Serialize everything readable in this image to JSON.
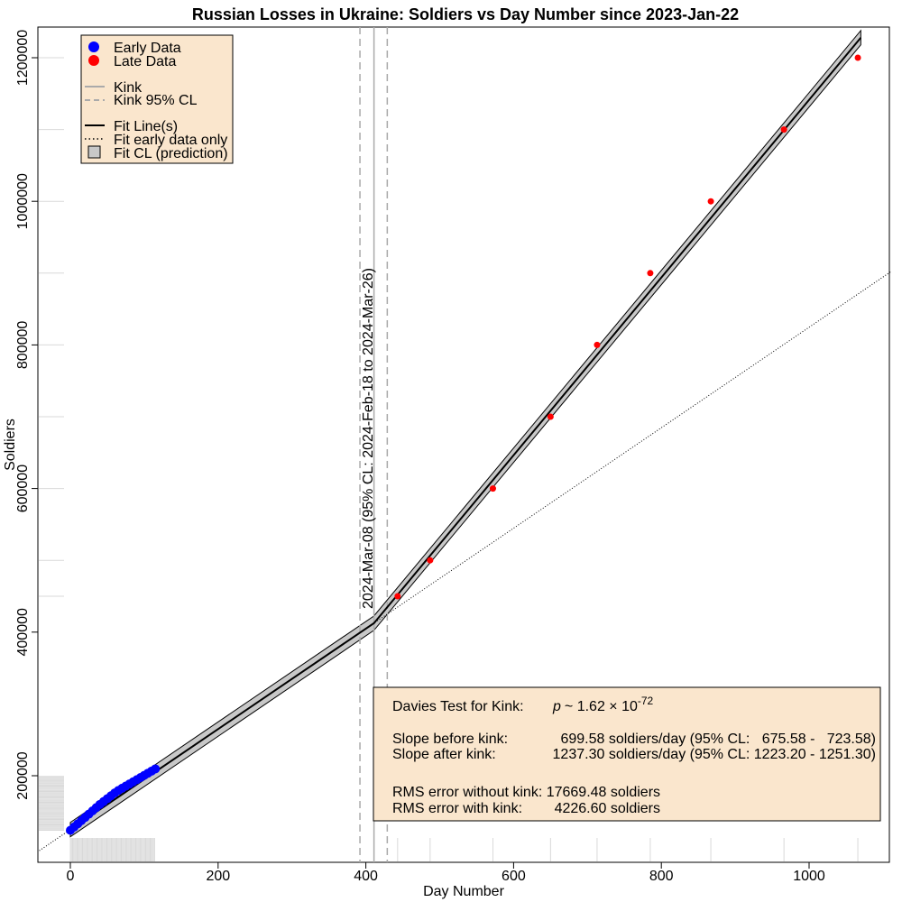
{
  "chart_data": {
    "type": "scatter",
    "title": "Russian Losses in Ukraine: Soldiers vs Day Number since 2023-Jan-22",
    "xlabel": "Day Number",
    "ylabel": "Soldiers",
    "xlim": [
      -42,
      1112
    ],
    "ylim": [
      94000,
      1245000
    ],
    "x_ticks": [
      0,
      200,
      400,
      600,
      800,
      1000
    ],
    "y_ticks": [
      200000,
      400000,
      600000,
      800000,
      1000000,
      1200000
    ],
    "grid": false,
    "legend_position": "top-left",
    "colors": {
      "early": "#0000ff",
      "late": "#ff0000",
      "kink": "#aaaaaa",
      "ci_fill": "#c8c8c8",
      "legend_bg": "#fae6cd",
      "rug": "#d9d9d9"
    },
    "series": [
      {
        "name": "Early Data",
        "color": "#0000ff",
        "x": [
          0,
          5,
          10,
          15,
          20,
          25,
          30,
          35,
          40,
          45,
          50,
          55,
          60,
          65,
          70,
          75,
          80,
          85,
          90,
          95,
          100,
          105,
          110,
          115
        ],
        "y": [
          124000,
          128500,
          133000,
          137500,
          142000,
          146500,
          151000,
          155500,
          160000,
          164000,
          168000,
          172000,
          176000,
          179500,
          182500,
          185500,
          188500,
          191500,
          194500,
          197500,
          200500,
          203500,
          206500,
          209500
        ]
      },
      {
        "name": "Late Data",
        "color": "#ff0000",
        "x": [
          443,
          487,
          572,
          650,
          713,
          785,
          867,
          966,
          1066
        ],
        "y": [
          450000,
          500000,
          600000,
          700000,
          800000,
          900000,
          1000000,
          1100000,
          1200000
        ]
      }
    ],
    "fit": {
      "kink_x": 411,
      "kink_ci": [
        392,
        429
      ],
      "anchor_x": 0,
      "anchor_y": 125000,
      "slope_before": 699.58,
      "slope_after": 1237.3,
      "early_only_x": [
        -42,
        1112
      ],
      "band_halfwidth": 10000
    },
    "legend_entries": {
      "early": "Early Data",
      "late": "Late Data",
      "kink": "Kink",
      "kink_cl": "Kink 95% CL",
      "fit": "Fit Line(s)",
      "fit_early": "Fit early data only",
      "fit_cl": "Fit CL (prediction)"
    },
    "kink_annotation": "2024-Mar-08 (95% CL: 2024-Feb-18 to 2024-Mar-26)",
    "stats_box": {
      "davies_label": "Davies Test for Kink:",
      "davies_p_prefix": "p",
      "davies_p_value": "~ 1.62 × 10",
      "davies_p_exponent": "-72",
      "slope_before_label": "Slope before kink:",
      "slope_before_value": "699.58 soldiers/day (95% CL:   675.58 -   723.58)",
      "slope_after_label": "Slope after kink:",
      "slope_after_value": "1237.30 soldiers/day (95% CL: 1223.20 - 1251.30)",
      "rms_without": "RMS error without kink: 17669.48 soldiers",
      "rms_with_label": "RMS error with kink:",
      "rms_with_value": "4226.60 soldiers"
    }
  }
}
